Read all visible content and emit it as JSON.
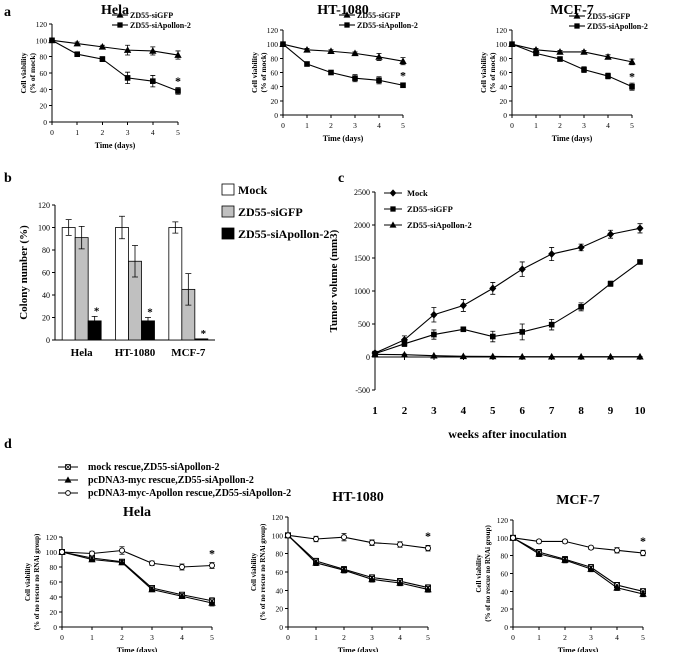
{
  "panel_labels": {
    "a": "a",
    "b": "b",
    "c": "c",
    "d": "d"
  },
  "panel_a": {
    "legend": [
      "ZD55-siGFP",
      "ZD55-siApollon-2"
    ],
    "charts": [
      {
        "title": "Hela",
        "ylabel": [
          "Cell viability",
          "(% of mock)"
        ],
        "xlabel": "Time (days)",
        "x": [
          0,
          1,
          2,
          3,
          4,
          5
        ],
        "ylim": [
          0,
          120
        ],
        "yticks": [
          0,
          20,
          40,
          60,
          80,
          100,
          120
        ],
        "series": [
          {
            "name": "ZD55-siGFP",
            "marker": "triangle",
            "values": [
              100,
              96,
              92,
              88,
              87,
              82
            ],
            "errors": [
              0,
              2,
              2,
              6,
              5,
              5
            ]
          },
          {
            "name": "ZD55-siApollon-2",
            "marker": "square",
            "values": [
              100,
              83,
              77,
              54,
              50,
              38
            ],
            "errors": [
              0,
              2,
              3,
              7,
              7,
              4
            ]
          }
        ],
        "annotation": "*"
      },
      {
        "title": "HT-1080",
        "ylabel": [
          "Cell viability",
          "(% of mock)"
        ],
        "xlabel": "Time (days)",
        "x": [
          0,
          1,
          2,
          3,
          4,
          5
        ],
        "ylim": [
          0,
          120
        ],
        "yticks": [
          0,
          20,
          40,
          60,
          80,
          100,
          120
        ],
        "series": [
          {
            "name": "ZD55-siGFP",
            "marker": "triangle",
            "values": [
              100,
              92,
              90,
              87,
              82,
              76
            ],
            "errors": [
              0,
              2,
              2,
              2,
              5,
              5
            ]
          },
          {
            "name": "ZD55-siApollon-2",
            "marker": "square",
            "values": [
              100,
              72,
              60,
              52,
              49,
              42
            ],
            "errors": [
              0,
              2,
              3,
              5,
              5,
              3
            ]
          }
        ],
        "annotation": "*"
      },
      {
        "title": "MCF-7",
        "ylabel": [
          "Cell viability",
          "(% of mock)"
        ],
        "xlabel": "Time (days)",
        "x": [
          0,
          1,
          2,
          3,
          4,
          5
        ],
        "ylim": [
          0,
          120
        ],
        "yticks": [
          0,
          20,
          40,
          60,
          80,
          100,
          120
        ],
        "series": [
          {
            "name": "ZD55-siGFP",
            "marker": "triangle",
            "values": [
              100,
              92,
              89,
              89,
              82,
              75
            ],
            "errors": [
              0,
              2,
              2,
              2,
              3,
              4
            ]
          },
          {
            "name": "ZD55-siApollon-2",
            "marker": "square",
            "values": [
              100,
              87,
              79,
              64,
              55,
              40
            ],
            "errors": [
              0,
              3,
              2,
              4,
              4,
              5
            ]
          }
        ],
        "annotation": "*"
      }
    ]
  },
  "panel_b": {
    "type": "bar",
    "ylabel": "Colony number (%)",
    "ylim": [
      0,
      120
    ],
    "yticks": [
      0,
      20,
      40,
      60,
      80,
      100,
      120
    ],
    "categories": [
      "Hela",
      "HT-1080",
      "MCF-7"
    ],
    "series": [
      {
        "name": "Mock",
        "fill": "#ffffff",
        "values": [
          100,
          100,
          100
        ],
        "errors": [
          7,
          10,
          5
        ]
      },
      {
        "name": "ZD55-siGFP",
        "fill": "#c0c0c0",
        "values": [
          91,
          70,
          45
        ],
        "errors": [
          10,
          14,
          14
        ]
      },
      {
        "name": "ZD55-siApollon-2",
        "fill": "#000000",
        "values": [
          17,
          17,
          1
        ],
        "errors": [
          4,
          3,
          0
        ]
      }
    ],
    "annotations": [
      "*",
      "*",
      "*"
    ]
  },
  "panel_c": {
    "type": "line",
    "ylabel": "Tumor volume (mm3)",
    "xlabel": "weeks after inoculation",
    "x": [
      1,
      2,
      3,
      4,
      5,
      6,
      7,
      8,
      9,
      10
    ],
    "ylim": [
      -500,
      2500
    ],
    "yticks": [
      -500,
      0,
      500,
      1000,
      1500,
      2000,
      2500
    ],
    "series": [
      {
        "name": "Mock",
        "marker": "diamond",
        "values": [
          60,
          260,
          640,
          780,
          1040,
          1330,
          1560,
          1660,
          1860,
          1950
        ],
        "errors": [
          20,
          60,
          110,
          90,
          90,
          110,
          100,
          50,
          60,
          70
        ]
      },
      {
        "name": "ZD55-siGFP",
        "marker": "square",
        "values": [
          50,
          200,
          340,
          420,
          310,
          380,
          490,
          760,
          1110,
          1440
        ],
        "errors": [
          15,
          40,
          70,
          30,
          80,
          120,
          80,
          60,
          40,
          30
        ]
      },
      {
        "name": "ZD55-siApollon-2",
        "marker": "triangle",
        "values": [
          40,
          35,
          20,
          10,
          8,
          5,
          5,
          5,
          5,
          5
        ],
        "errors": [
          10,
          8,
          5,
          5,
          3,
          3,
          3,
          3,
          3,
          3
        ]
      }
    ]
  },
  "panel_d": {
    "legend": [
      "mock rescue,ZD55-siApollon-2",
      "pcDNA3-myc rescue,ZD55-siApollon-2",
      "pcDNA3-myc-Apollon rescue,ZD55-siApollon-2"
    ],
    "charts": [
      {
        "title": "Hela",
        "ylabel": [
          "Cell viability",
          "(% of no rescue no RNAi group)"
        ],
        "xlabel": "Time (days)",
        "x": [
          0,
          1,
          2,
          3,
          4,
          5
        ],
        "ylim": [
          0,
          120
        ],
        "yticks": [
          0,
          20,
          40,
          60,
          80,
          100,
          120
        ],
        "series": [
          {
            "name": "mock rescue,ZD55-siApollon-2",
            "marker": "square-x",
            "values": [
              100,
              92,
              87,
              52,
              43,
              35
            ],
            "errors": [
              0,
              3,
              3,
              3,
              3,
              4
            ]
          },
          {
            "name": "pcDNA3-myc rescue,ZD55-siApollon-2",
            "marker": "triangle",
            "values": [
              100,
              90,
              86,
              50,
              41,
              32
            ],
            "errors": [
              0,
              3,
              3,
              3,
              3,
              4
            ]
          },
          {
            "name": "pcDNA3-myc-Apollon rescue,ZD55-siApollon-2",
            "marker": "circle",
            "values": [
              100,
              98,
              102,
              85,
              80,
              82
            ],
            "errors": [
              0,
              3,
              5,
              3,
              4,
              4
            ]
          }
        ],
        "annotation": "*"
      },
      {
        "title": "HT-1080",
        "ylabel": [
          "Cell viability",
          "(% of no rescue no RNAi group)"
        ],
        "xlabel": "Time (days)",
        "x": [
          0,
          1,
          2,
          3,
          4,
          5
        ],
        "ylim": [
          0,
          120
        ],
        "yticks": [
          0,
          20,
          40,
          60,
          80,
          100,
          120
        ],
        "series": [
          {
            "name": "mock rescue,ZD55-siApollon-2",
            "marker": "square-x",
            "values": [
              100,
              72,
              63,
              54,
              50,
              43
            ],
            "errors": [
              0,
              3,
              3,
              3,
              3,
              3
            ]
          },
          {
            "name": "pcDNA3-myc rescue,ZD55-siApollon-2",
            "marker": "triangle",
            "values": [
              100,
              70,
              62,
              52,
              48,
              41
            ],
            "errors": [
              0,
              3,
              3,
              3,
              3,
              3
            ]
          },
          {
            "name": "pcDNA3-myc-Apollon rescue,ZD55-siApollon-2",
            "marker": "circle",
            "values": [
              100,
              96,
              98,
              92,
              90,
              86
            ],
            "errors": [
              0,
              3,
              4,
              3,
              3,
              3
            ]
          }
        ],
        "annotation": "*"
      },
      {
        "title": "MCF-7",
        "ylabel": [
          "Cell viability",
          "(% of no rescue no RNAi group)"
        ],
        "xlabel": "Time (days)",
        "x": [
          0,
          1,
          2,
          3,
          4,
          5
        ],
        "ylim": [
          0,
          120
        ],
        "yticks": [
          0,
          20,
          40,
          60,
          80,
          100,
          120
        ],
        "series": [
          {
            "name": "mock rescue,ZD55-siApollon-2",
            "marker": "square-x",
            "values": [
              100,
              84,
              76,
              67,
              47,
              40
            ],
            "errors": [
              0,
              3,
              3,
              3,
              3,
              3
            ]
          },
          {
            "name": "pcDNA3-myc rescue,ZD55-siApollon-2",
            "marker": "triangle",
            "values": [
              100,
              82,
              75,
              65,
              44,
              37
            ],
            "errors": [
              0,
              3,
              3,
              3,
              3,
              3
            ]
          },
          {
            "name": "pcDNA3-myc-Apollon rescue,ZD55-siApollon-2",
            "marker": "circle",
            "values": [
              100,
              96,
              96,
              89,
              86,
              83
            ],
            "errors": [
              0,
              2,
              2,
              2,
              3,
              3
            ]
          }
        ],
        "annotation": "*"
      }
    ]
  }
}
